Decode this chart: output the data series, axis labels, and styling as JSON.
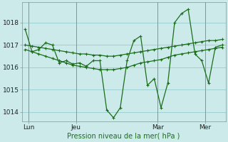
{
  "background_color": "#cceaea",
  "plot_bg_color": "#cceaea",
  "grid_color": "#99cccc",
  "line_color": "#1a6e1a",
  "xlabel": "Pression niveau de la mer( hPa )",
  "yticks": [
    1014,
    1015,
    1016,
    1017,
    1018
  ],
  "ylim": [
    1013.6,
    1018.9
  ],
  "xlim": [
    -0.5,
    29.5
  ],
  "xtick_labels": [
    "Lun",
    "Jeu",
    "Mar",
    "Mer"
  ],
  "xtick_positions": [
    0.5,
    7.5,
    19.5,
    26.5
  ],
  "vlines": [
    0.5,
    7.5,
    19.5,
    26.5
  ],
  "series_jagged": [
    1017.7,
    1016.7,
    1016.8,
    1017.1,
    1017.0,
    1016.2,
    1016.3,
    1016.15,
    1016.2,
    1016.05,
    1016.3,
    1016.3,
    1014.1,
    1013.75,
    1014.2,
    1016.3,
    1017.2,
    1017.4,
    1015.2,
    1015.5,
    1014.2,
    1015.3,
    1018.0,
    1018.4,
    1018.6,
    1016.6,
    1016.3,
    1015.3,
    1016.9,
    1017.0
  ],
  "series_upper": [
    1017.0,
    1016.95,
    1016.9,
    1016.85,
    1016.8,
    1016.75,
    1016.7,
    1016.65,
    1016.6,
    1016.6,
    1016.55,
    1016.55,
    1016.5,
    1016.5,
    1016.55,
    1016.6,
    1016.65,
    1016.7,
    1016.75,
    1016.8,
    1016.85,
    1016.9,
    1016.95,
    1017.0,
    1017.05,
    1017.1,
    1017.15,
    1017.2,
    1017.2,
    1017.25
  ],
  "series_lower": [
    1016.8,
    1016.7,
    1016.6,
    1016.5,
    1016.4,
    1016.3,
    1016.2,
    1016.1,
    1016.05,
    1016.0,
    1015.95,
    1015.9,
    1015.9,
    1015.9,
    1015.95,
    1016.0,
    1016.1,
    1016.2,
    1016.25,
    1016.3,
    1016.35,
    1016.45,
    1016.55,
    1016.6,
    1016.65,
    1016.7,
    1016.75,
    1016.8,
    1016.85,
    1016.9
  ]
}
